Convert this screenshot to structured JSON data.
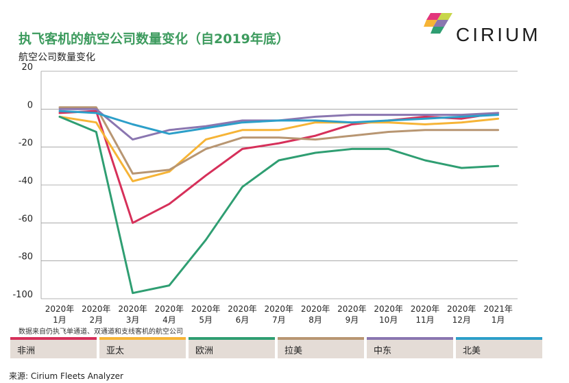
{
  "title": "执飞客机的航空公司数量变化（自2019年底）",
  "brand": "CIRIUM",
  "note": "数据来自仍执飞单通道、双通道和支线客机的航空公司",
  "source": "来源:  Cirium Fleets Analyzer",
  "colors": {
    "title": "#3d9b5e",
    "grid": "#9a9a9a",
    "legend_bg": "#e4dcd6"
  },
  "chart_data": {
    "type": "line",
    "title": "执飞客机的航空公司数量变化（自2019年底）",
    "ylabel": "航空公司数量变化",
    "xlabel": "",
    "ylim": [
      -100,
      20
    ],
    "yticks": [
      20,
      0,
      -20,
      -40,
      -60,
      -80,
      -100
    ],
    "grid": true,
    "legend_position": "bottom",
    "categories": [
      [
        "2020年",
        "1月"
      ],
      [
        "2020年",
        "2月"
      ],
      [
        "2020年",
        "3月"
      ],
      [
        "2020年",
        "4月"
      ],
      [
        "2020年",
        "5月"
      ],
      [
        "2020年",
        "6月"
      ],
      [
        "2020年",
        "7月"
      ],
      [
        "2020年",
        "8月"
      ],
      [
        "2020年",
        "9月"
      ],
      [
        "2020年",
        "10月"
      ],
      [
        "2020年",
        "11月"
      ],
      [
        "2020年",
        "12月"
      ],
      [
        "2021年",
        "1月"
      ]
    ],
    "series": [
      {
        "name": "非洲",
        "color": "#d6305a",
        "values": [
          -2,
          -1,
          -60,
          -50,
          -35,
          -21,
          -18,
          -14,
          -8,
          -6,
          -4,
          -5,
          -2
        ]
      },
      {
        "name": "亚太",
        "color": "#f6b436",
        "values": [
          -4,
          -7,
          -38,
          -33,
          -16,
          -11,
          -11,
          -7,
          -7,
          -7,
          -8,
          -7,
          -5
        ]
      },
      {
        "name": "欧洲",
        "color": "#2f9e72",
        "values": [
          -4,
          -12,
          -97,
          -93,
          -69,
          -41,
          -27,
          -23,
          -21,
          -21,
          -27,
          -31,
          -30
        ]
      },
      {
        "name": "拉美",
        "color": "#b89672",
        "values": [
          1,
          1,
          -34,
          -32,
          -21,
          -15,
          -15,
          -16,
          -14,
          -12,
          -11,
          -11,
          -11
        ]
      },
      {
        "name": "中东",
        "color": "#8a76b0",
        "values": [
          0,
          0,
          -16,
          -11,
          -9,
          -6,
          -6,
          -4,
          -3,
          -3,
          -3,
          -3,
          -2
        ]
      },
      {
        "name": "北美",
        "color": "#2c9fc9",
        "values": [
          -1,
          -2,
          -8,
          -13,
          -10,
          -7,
          -6,
          -6,
          -7,
          -6,
          -5,
          -4,
          -3
        ]
      }
    ]
  }
}
